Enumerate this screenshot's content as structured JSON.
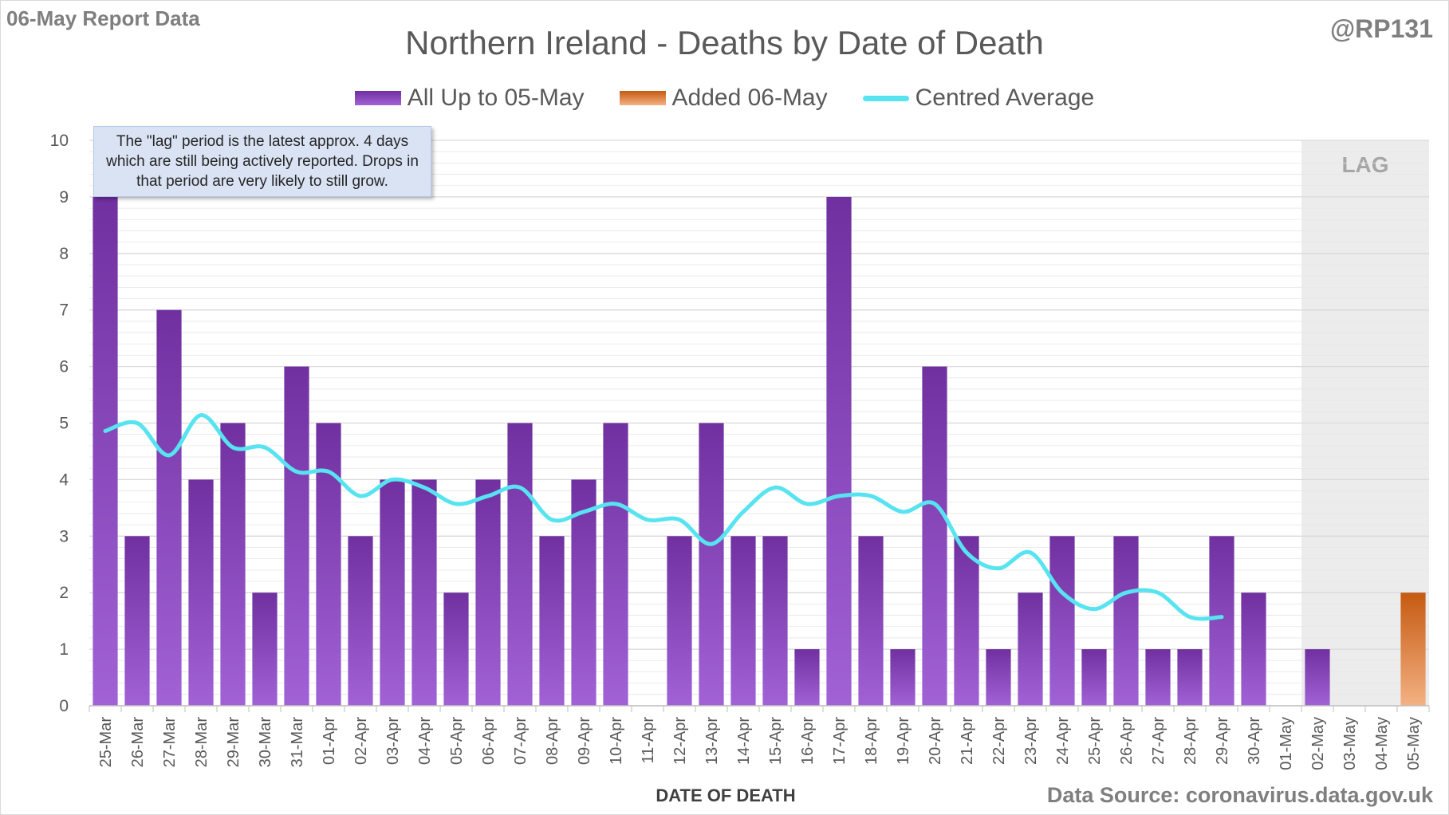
{
  "header": {
    "report_label": "06-May Report Data",
    "handle": "@RP131",
    "source": "Data Source: coronavirus.data.gov.uk"
  },
  "annotation": {
    "note": "The \"lag\" period is the latest approx. 4 days which are still being actively reported.  Drops in that period are very likely to still grow.",
    "lag_label": "LAG",
    "lag_categories": [
      "02-May",
      "03-May",
      "04-May",
      "05-May"
    ]
  },
  "colors": {
    "bar_main": "#7030a0",
    "bar_light": "#a162d6",
    "bar_added": "#c55a11",
    "bar_added_light": "#f4b183",
    "average_line": "#57e4f0",
    "lag_shade": "#ececec",
    "grid": "#e6e6e6",
    "text": "#595959"
  },
  "chart_data": {
    "type": "bar",
    "title": "Northern Ireland - Deaths by Date of Death",
    "xlabel": "DATE OF DEATH",
    "ylabel": "",
    "ylim": [
      0,
      10
    ],
    "yticks": [
      0,
      1,
      2,
      3,
      4,
      5,
      6,
      7,
      8,
      9,
      10
    ],
    "grid": true,
    "legend_position": "top-center",
    "categories": [
      "25-Mar",
      "26-Mar",
      "27-Mar",
      "28-Mar",
      "29-Mar",
      "30-Mar",
      "31-Mar",
      "01-Apr",
      "02-Apr",
      "03-Apr",
      "04-Apr",
      "05-Apr",
      "06-Apr",
      "07-Apr",
      "08-Apr",
      "09-Apr",
      "10-Apr",
      "11-Apr",
      "12-Apr",
      "13-Apr",
      "14-Apr",
      "15-Apr",
      "16-Apr",
      "17-Apr",
      "18-Apr",
      "19-Apr",
      "20-Apr",
      "21-Apr",
      "22-Apr",
      "23-Apr",
      "24-Apr",
      "25-Apr",
      "26-Apr",
      "27-Apr",
      "28-Apr",
      "29-Apr",
      "30-Apr",
      "01-May",
      "02-May",
      "03-May",
      "04-May",
      "05-May"
    ],
    "series": [
      {
        "name": "All Up to 05-May",
        "kind": "bar",
        "values": [
          9,
          3,
          7,
          4,
          5,
          2,
          6,
          5,
          3,
          4,
          4,
          2,
          4,
          5,
          3,
          4,
          5,
          0,
          3,
          5,
          3,
          3,
          1,
          9,
          3,
          1,
          6,
          3,
          1,
          2,
          3,
          1,
          3,
          1,
          1,
          3,
          2,
          0,
          1,
          0,
          0,
          0
        ]
      },
      {
        "name": "Added 06-May",
        "kind": "bar",
        "values": [
          0,
          0,
          0,
          0,
          0,
          0,
          0,
          0,
          0,
          0,
          0,
          0,
          0,
          0,
          0,
          0,
          0,
          0,
          0,
          0,
          0,
          0,
          0,
          0,
          0,
          0,
          0,
          0,
          0,
          0,
          0,
          0,
          0,
          0,
          0,
          0,
          0,
          0,
          0,
          0,
          0,
          2
        ]
      },
      {
        "name": "Centred Average",
        "kind": "line",
        "values": [
          4.86,
          5.0,
          4.43,
          5.14,
          4.57,
          4.57,
          4.14,
          4.14,
          3.71,
          4.0,
          3.86,
          3.57,
          3.71,
          3.86,
          3.29,
          3.43,
          3.57,
          3.29,
          3.29,
          2.86,
          3.43,
          3.86,
          3.57,
          3.71,
          3.71,
          3.43,
          3.57,
          2.71,
          2.43,
          2.71,
          2.0,
          1.71,
          2.0,
          2.0,
          1.57,
          1.57,
          null,
          null,
          null,
          null,
          null,
          null
        ]
      }
    ]
  }
}
